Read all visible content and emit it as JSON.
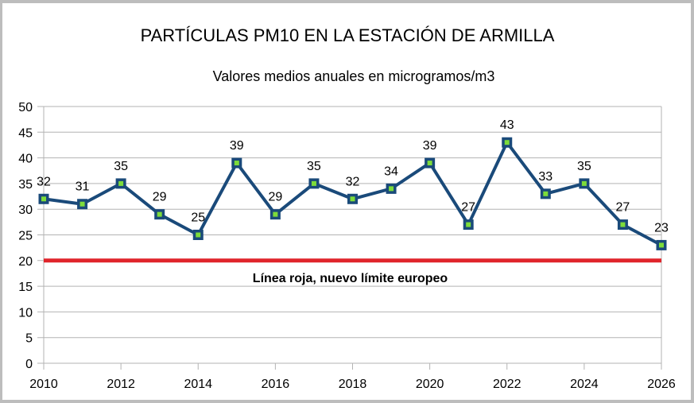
{
  "chart_data": {
    "type": "line",
    "title": "PARTÍCULAS PM10 EN LA ESTACIÓN DE ARMILLA",
    "subtitle": "Valores medios anuales en microgramos/m3",
    "xlabel": "",
    "ylabel": "",
    "x": [
      2010,
      2011,
      2012,
      2013,
      2014,
      2015,
      2016,
      2017,
      2018,
      2019,
      2020,
      2021,
      2022,
      2023,
      2024,
      2025,
      2026
    ],
    "series": [
      {
        "name": "PM10",
        "values": [
          32,
          31,
          35,
          29,
          25,
          39,
          29,
          35,
          32,
          34,
          39,
          27,
          43,
          33,
          35,
          27,
          23
        ],
        "line_color": "#1a4a7a",
        "marker_color": "#7ddc3a"
      }
    ],
    "xlim": [
      2010,
      2026
    ],
    "ylim": [
      0,
      50
    ],
    "xticks": [
      "2010",
      "2012",
      "2014",
      "2016",
      "2018",
      "2020",
      "2022",
      "2024",
      "2026"
    ],
    "yticks": [
      "0",
      "5",
      "10",
      "15",
      "20",
      "25",
      "30",
      "35",
      "40",
      "45",
      "50"
    ],
    "grid": true,
    "legend": "none",
    "reference_line": {
      "value": 20,
      "color": "#e0252b",
      "label": "Línea roja, nuevo límite europeo"
    }
  }
}
